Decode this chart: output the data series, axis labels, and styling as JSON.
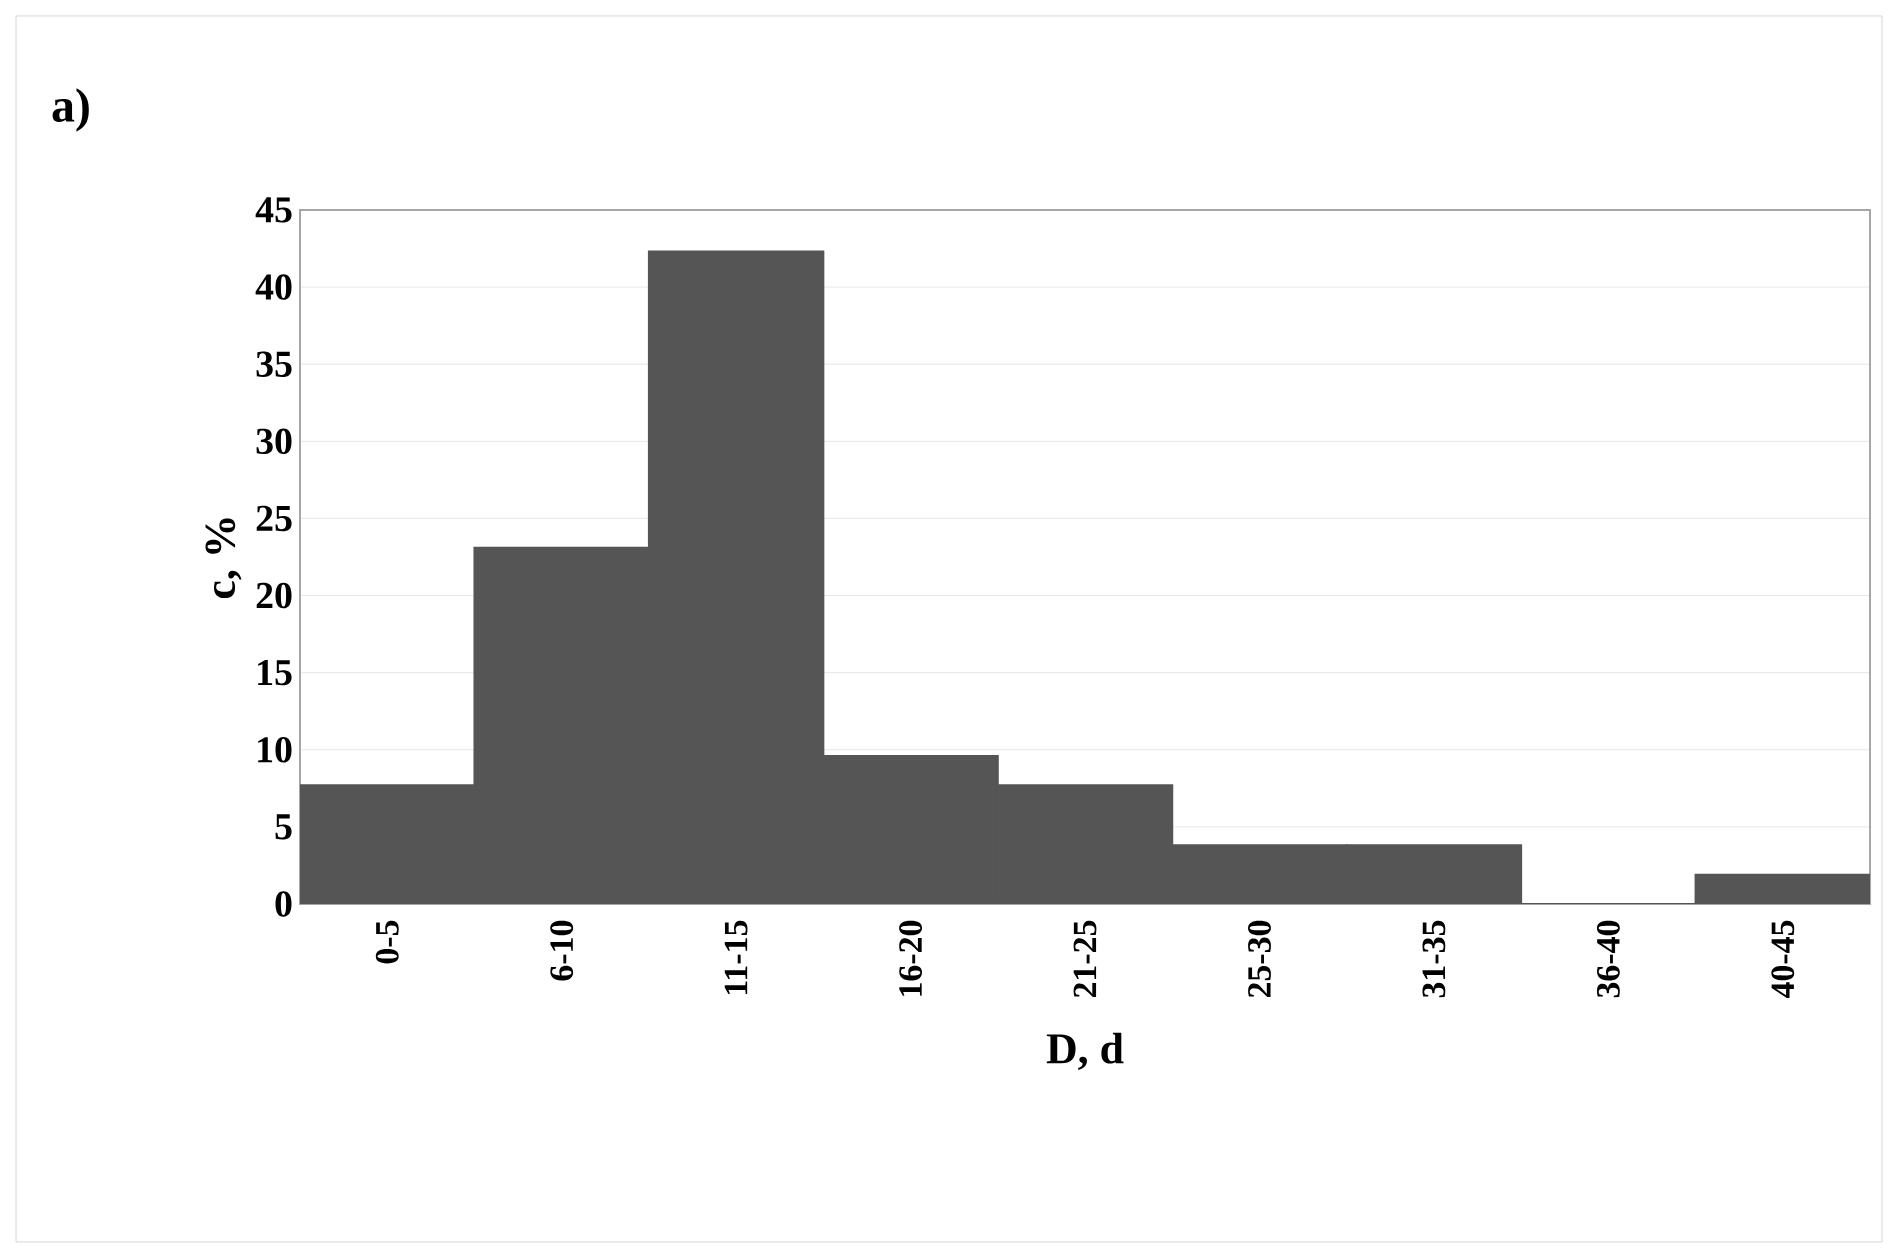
{
  "chart_data": {
    "type": "bar",
    "title": "a)",
    "xlabel": "D, d",
    "ylabel": "c, %",
    "categories": [
      "0-5",
      "6-10",
      "11-15",
      "16-20",
      "21-25",
      "25-30",
      "31-35",
      "36-40",
      "40-45"
    ],
    "values": [
      7.7,
      23.1,
      42.3,
      9.6,
      7.7,
      3.8,
      3.8,
      0,
      1.9
    ],
    "color": "#555555",
    "ylim": [
      0,
      45
    ],
    "yticks": [
      0,
      5,
      10,
      15,
      20,
      25,
      30,
      35,
      40,
      45
    ],
    "grid": "y"
  }
}
